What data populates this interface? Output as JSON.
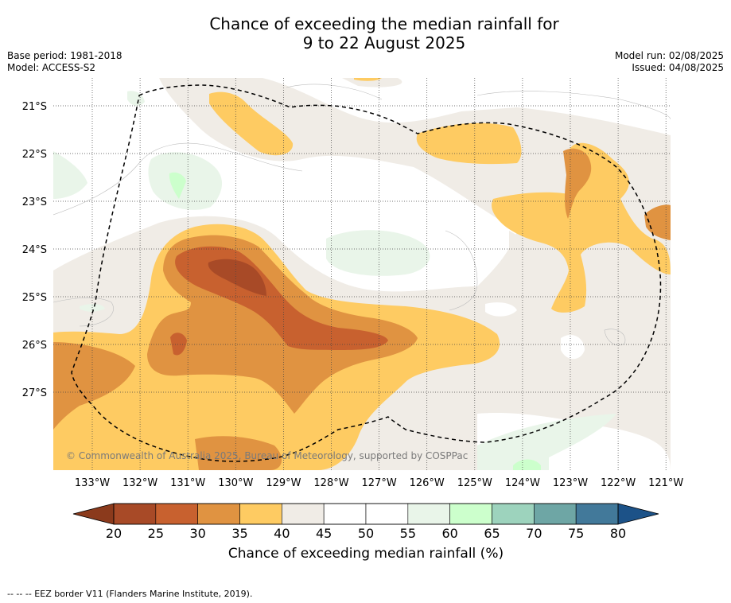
{
  "title": {
    "line1": "Chance of exceeding the median rainfall for",
    "line2": "9 to 22 August 2025"
  },
  "meta": {
    "base_period": "Base period: 1981-2018",
    "model": "Model: ACCESS-S2",
    "model_run": "Model run: 02/08/2025",
    "issued": "Issued: 04/08/2025"
  },
  "map": {
    "lon_ticks": [
      "133°W",
      "132°W",
      "131°W",
      "130°W",
      "129°W",
      "128°W",
      "127°W",
      "126°W",
      "125°W",
      "124°W",
      "123°W",
      "122°W",
      "121°W"
    ],
    "lat_ticks": [
      "21°S",
      "22°S",
      "23°S",
      "24°S",
      "25°S",
      "26°S",
      "27°S"
    ],
    "copyright": "© Commonwealth of Australia 2025, Bureau of Meteorology, supported by COSPPac"
  },
  "colorbar": {
    "ticks": [
      "20",
      "25",
      "30",
      "35",
      "40",
      "45",
      "50",
      "55",
      "60",
      "65",
      "70",
      "75",
      "80"
    ],
    "colors": [
      "#a84a27",
      "#c8612f",
      "#e09341",
      "#fecb62",
      "#f0ece6",
      "#ffffff",
      "#ffffff",
      "#e9f5e9",
      "#ccffcc",
      "#9dd3bd",
      "#6ea6a5",
      "#42799a"
    ],
    "low_color": "#8b3a1c",
    "high_color": "#1c5288",
    "label": "Chance of exceeding median rainfall (%)"
  },
  "footnote": "-- -- -- EEZ border V11 (Flanders Marine Institute, 2019)."
}
